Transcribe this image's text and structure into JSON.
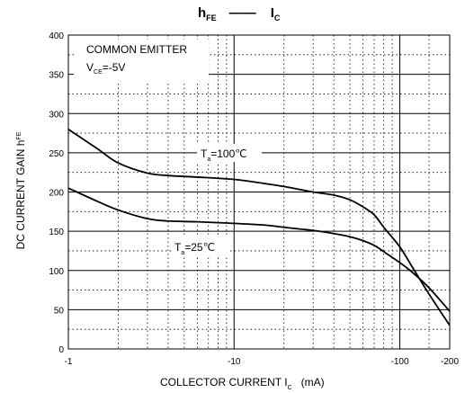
{
  "chart_data": {
    "type": "line",
    "title": {
      "left_main": "h",
      "left_sub": "FE",
      "dash": "——",
      "right_main": "I",
      "right_sub": "C"
    },
    "note": {
      "line1": "COMMON EMITTER",
      "line2_main": "V",
      "line2_sub": "CE",
      "line2_rest": "=-5V"
    },
    "xlabel": {
      "main": "COLLECTOR CURRENT   I",
      "sub": "C",
      "unit": "(mA)"
    },
    "ylabel": {
      "main": "DC CURRENT GAIN   h",
      "sub": "FE"
    },
    "x_scale": "log",
    "xlim": [
      -1,
      -200
    ],
    "ylim": [
      0,
      400
    ],
    "x_ticks": [
      {
        "value": -1,
        "label": "-1"
      },
      {
        "value": -10,
        "label": "-10"
      },
      {
        "value": -100,
        "label": "-100"
      },
      {
        "value": -200,
        "label": "-200"
      }
    ],
    "y_ticks": [
      0,
      50,
      100,
      150,
      200,
      250,
      300,
      350,
      400
    ],
    "grid": true,
    "series": [
      {
        "label_main": "T",
        "label_sub": "a",
        "label_rest": "=100℃",
        "x": [
          -1,
          -1.5,
          -2,
          -3,
          -4,
          -6,
          -10,
          -15,
          -20,
          -30,
          -40,
          -50,
          -60,
          -70,
          -80,
          -100,
          -120,
          -150,
          -200
        ],
        "y": [
          280,
          255,
          237,
          224,
          221,
          219,
          216,
          211,
          207,
          200,
          196,
          190,
          181,
          171,
          155,
          130,
          103,
          70,
          30
        ]
      },
      {
        "label_main": "T",
        "label_sub": "a",
        "label_rest": "=25℃",
        "x": [
          -1,
          -1.5,
          -2,
          -3,
          -4,
          -6,
          -10,
          -15,
          -20,
          -30,
          -40,
          -50,
          -60,
          -70,
          -80,
          -100,
          -120,
          -150,
          -200
        ],
        "y": [
          205,
          188,
          177,
          166,
          163,
          162,
          160,
          158,
          155,
          151,
          147,
          143,
          138,
          132,
          124,
          110,
          97,
          78,
          48
        ]
      }
    ]
  }
}
